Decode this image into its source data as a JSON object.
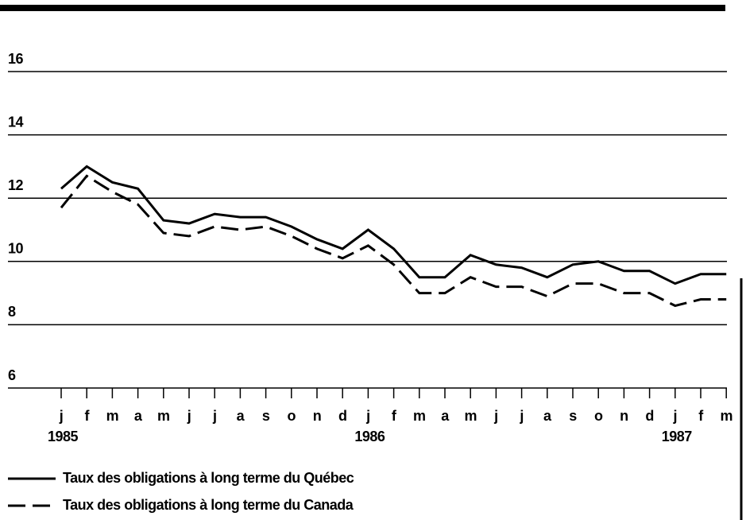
{
  "chart_data": {
    "type": "line",
    "categories": [
      "j",
      "f",
      "m",
      "a",
      "m",
      "j",
      "j",
      "a",
      "s",
      "o",
      "n",
      "d",
      "j",
      "f",
      "m",
      "a",
      "m",
      "j",
      "j",
      "a",
      "s",
      "o",
      "n",
      "d",
      "j",
      "f",
      "m"
    ],
    "years": [
      "1985",
      null,
      null,
      null,
      null,
      null,
      null,
      null,
      null,
      null,
      null,
      null,
      "1986",
      null,
      null,
      null,
      null,
      null,
      null,
      null,
      null,
      null,
      null,
      null,
      "1987",
      null,
      null
    ],
    "series": [
      {
        "name": "Taux des obligations à long terme du Québec",
        "color": "#000000",
        "line_style": "solid",
        "values": [
          12.3,
          13.0,
          12.5,
          12.3,
          11.3,
          11.2,
          11.5,
          11.4,
          11.4,
          11.1,
          10.7,
          10.4,
          11.0,
          10.4,
          9.5,
          9.5,
          10.2,
          9.9,
          9.8,
          9.5,
          9.9,
          10.0,
          9.7,
          9.7,
          9.3,
          9.6,
          9.6
        ]
      },
      {
        "name": "Taux des obligations à long terme du Canada",
        "color": "#000000",
        "line_style": "dashed",
        "values": [
          11.7,
          12.7,
          12.2,
          11.8,
          10.9,
          10.8,
          11.1,
          11.0,
          11.1,
          10.8,
          10.4,
          10.1,
          10.5,
          9.9,
          9.0,
          9.0,
          9.5,
          9.2,
          9.2,
          8.9,
          9.3,
          9.3,
          9.0,
          9.0,
          8.6,
          8.8,
          8.8
        ]
      }
    ],
    "ylim": [
      6,
      16
    ],
    "yticks": [
      6,
      8,
      10,
      12,
      14,
      16
    ],
    "grid": true
  }
}
